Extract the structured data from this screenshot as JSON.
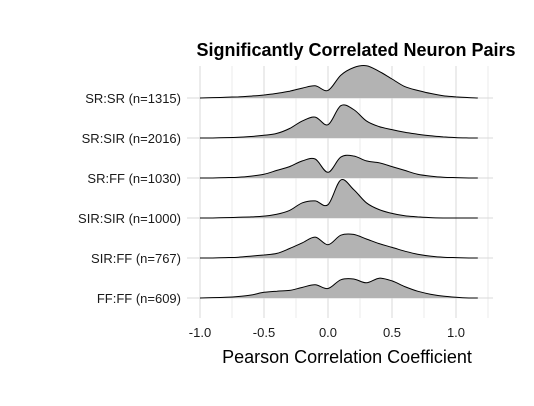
{
  "chart_data": {
    "type": "ridgeline",
    "title": "Significantly Correlated Neuron Pairs",
    "xlabel": "Pearson Correlation Coefficient",
    "ylabel": "",
    "xlim": [
      -1.05,
      1.25
    ],
    "x_ticks": [
      -1.0,
      -0.5,
      0.0,
      0.5,
      1.0
    ],
    "x_tick_labels": [
      "-1.0",
      "-0.5",
      "0.0",
      "0.5",
      "1.0"
    ],
    "grid": true,
    "fill_color": "#b3b3b3",
    "line_color": "#000000",
    "x": [
      -1.0,
      -0.9,
      -0.8,
      -0.7,
      -0.6,
      -0.5,
      -0.4,
      -0.3,
      -0.2,
      -0.1,
      0.0,
      0.1,
      0.2,
      0.3,
      0.4,
      0.5,
      0.6,
      0.7,
      0.8,
      0.9,
      1.0,
      1.1,
      1.17
    ],
    "series": [
      {
        "name": "SR:SR (n=1315)",
        "density": [
          0,
          0.01,
          0.02,
          0.03,
          0.05,
          0.08,
          0.12,
          0.18,
          0.26,
          0.32,
          0.2,
          0.6,
          0.8,
          0.85,
          0.7,
          0.5,
          0.3,
          0.2,
          0.12,
          0.06,
          0.03,
          0.01,
          0
        ]
      },
      {
        "name": "SR:SIR (n=2016)",
        "density": [
          0,
          0,
          0.01,
          0.02,
          0.04,
          0.07,
          0.12,
          0.25,
          0.45,
          0.55,
          0.35,
          0.85,
          0.75,
          0.45,
          0.3,
          0.22,
          0.15,
          0.1,
          0.06,
          0.03,
          0.01,
          0,
          0
        ]
      },
      {
        "name": "SR:FF (n=1030)",
        "density": [
          0,
          0,
          0.01,
          0.02,
          0.05,
          0.1,
          0.2,
          0.3,
          0.45,
          0.5,
          0.15,
          0.55,
          0.58,
          0.45,
          0.4,
          0.3,
          0.2,
          0.1,
          0.05,
          0.02,
          0.01,
          0,
          0
        ]
      },
      {
        "name": "SIR:SIR (n=1000)",
        "density": [
          0,
          0,
          0.01,
          0.02,
          0.03,
          0.05,
          0.1,
          0.2,
          0.4,
          0.45,
          0.35,
          1.0,
          0.75,
          0.4,
          0.22,
          0.12,
          0.06,
          0.03,
          0.01,
          0,
          0,
          0,
          0
        ]
      },
      {
        "name": "SIR:FF (n=767)",
        "density": [
          0,
          0,
          0.01,
          0.02,
          0.05,
          0.08,
          0.12,
          0.25,
          0.4,
          0.55,
          0.35,
          0.6,
          0.62,
          0.5,
          0.38,
          0.28,
          0.18,
          0.1,
          0.05,
          0.02,
          0.01,
          0,
          0
        ]
      },
      {
        "name": "FF:FF (n=609)",
        "density": [
          0,
          0.01,
          0.02,
          0.04,
          0.08,
          0.15,
          0.18,
          0.2,
          0.28,
          0.35,
          0.25,
          0.48,
          0.5,
          0.4,
          0.52,
          0.45,
          0.3,
          0.18,
          0.1,
          0.05,
          0.02,
          0,
          0
        ]
      }
    ]
  }
}
